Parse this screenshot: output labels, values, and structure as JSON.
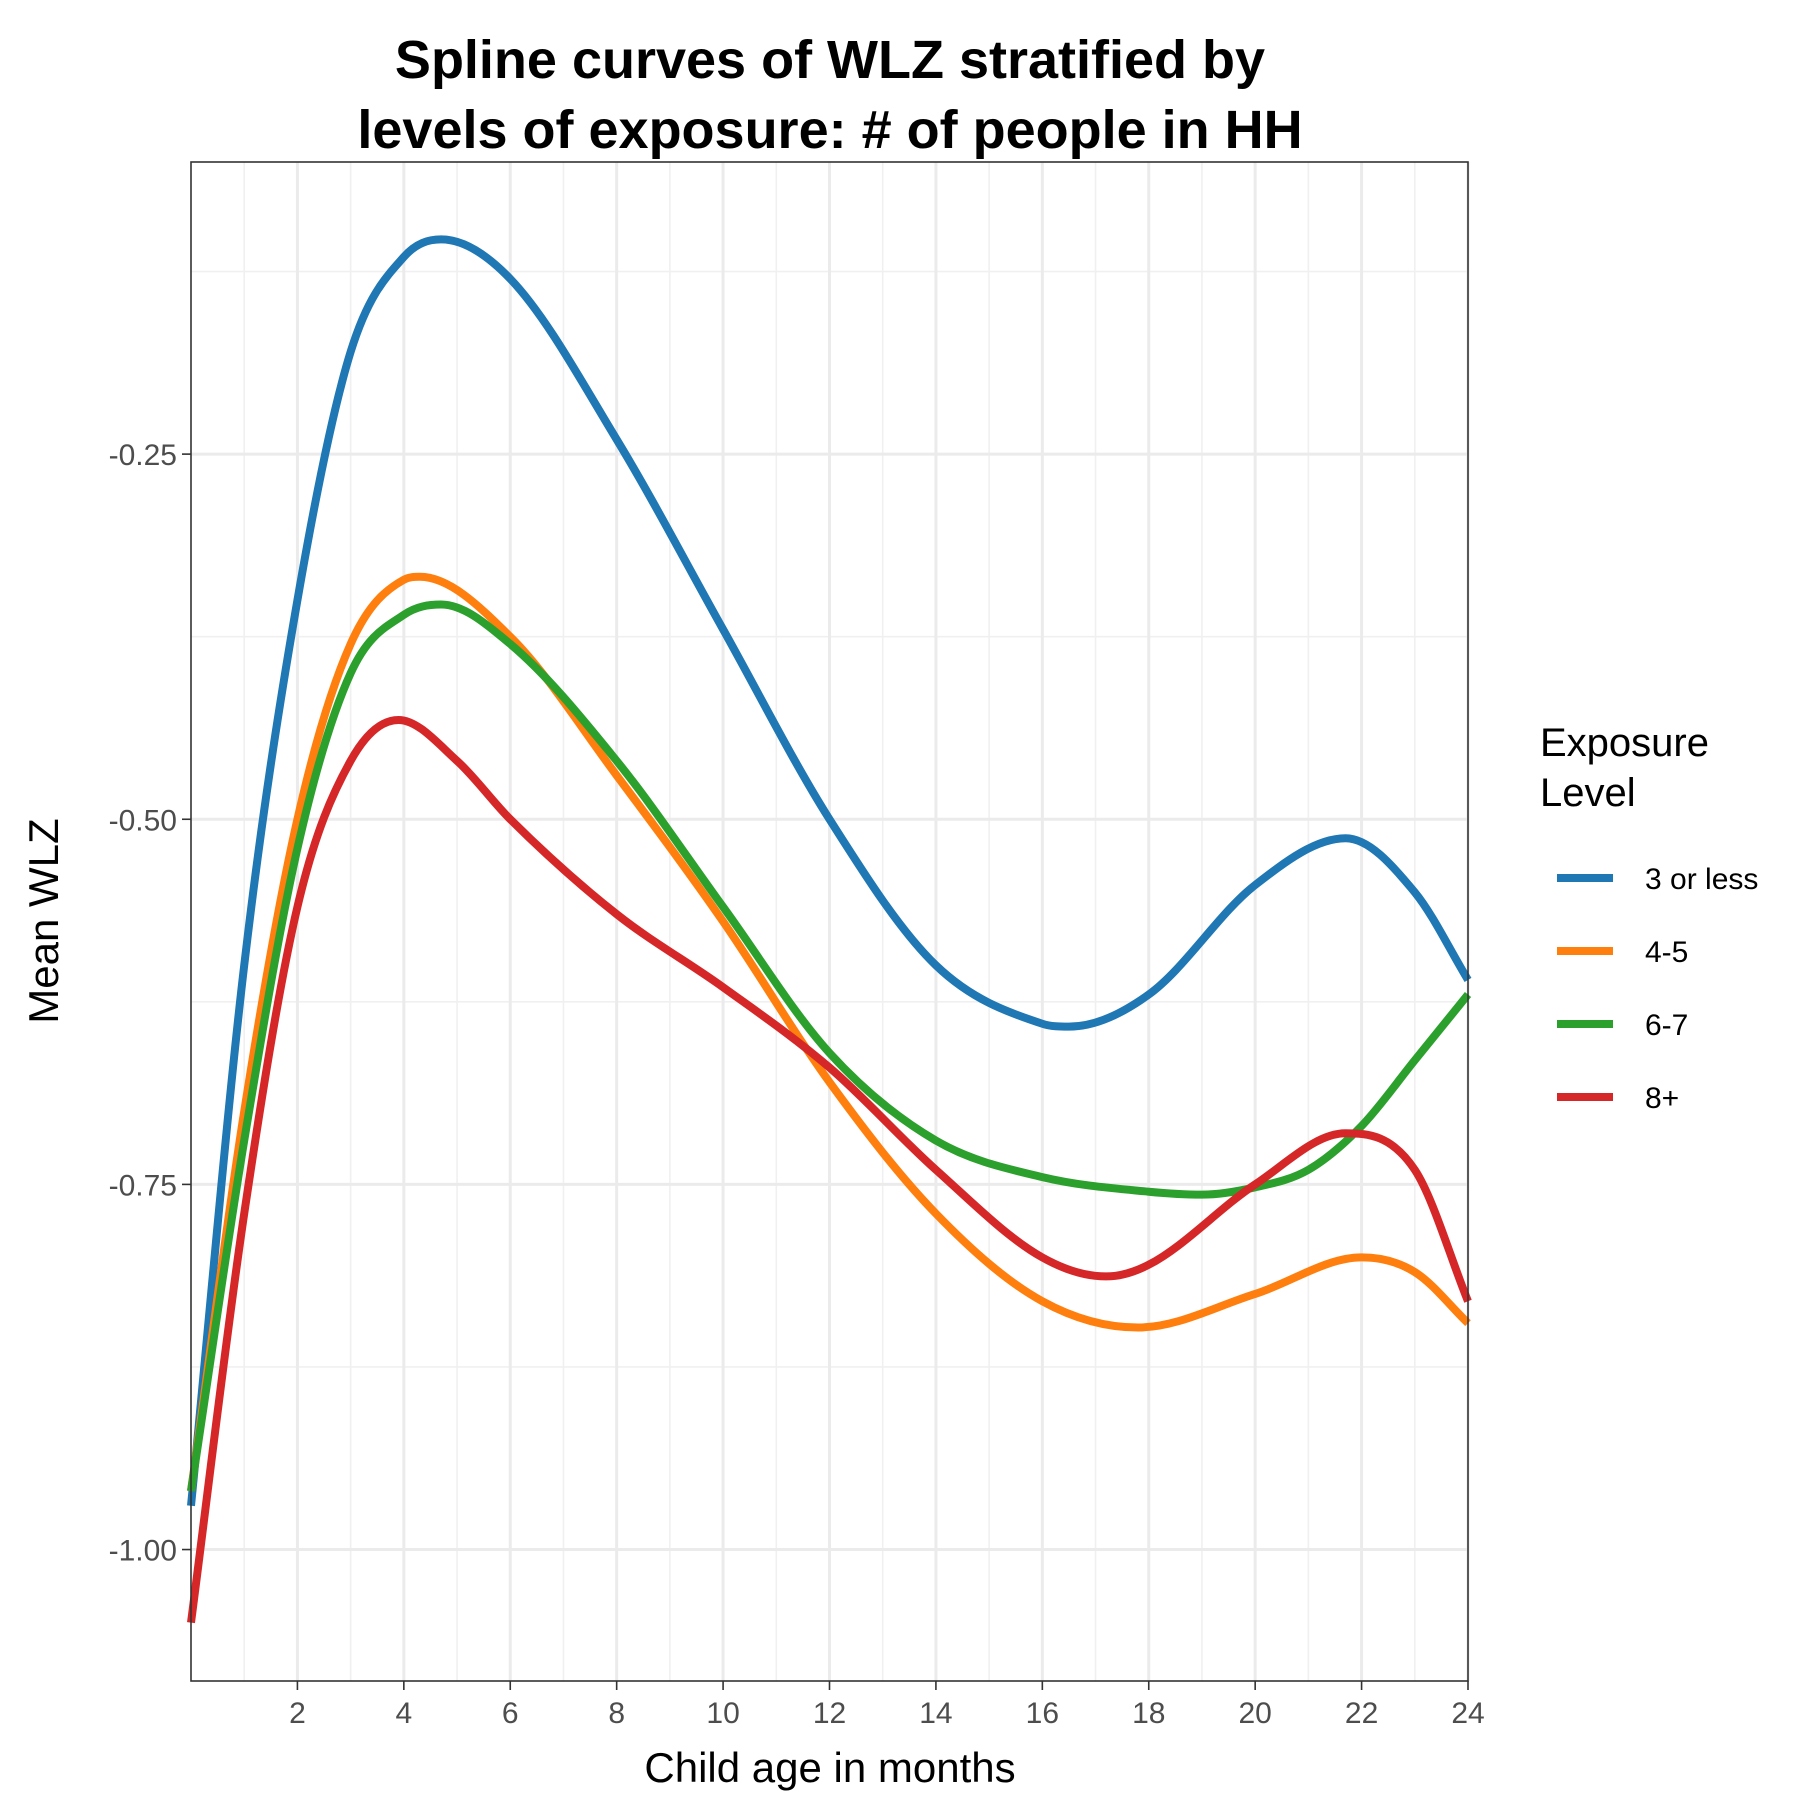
{
  "chart_data": {
    "type": "line",
    "title_lines": [
      "Spline curves of WLZ stratified by",
      "levels of exposure: # of people in HH"
    ],
    "xlabel": "Child age in months",
    "ylabel": "Mean WLZ",
    "xlim": [
      0,
      24
    ],
    "ylim": [
      -1.09,
      -0.05
    ],
    "x_ticks": [
      2,
      4,
      6,
      8,
      10,
      12,
      14,
      16,
      18,
      20,
      22,
      24
    ],
    "y_ticks": [
      -1.0,
      -0.75,
      -0.5,
      -0.25
    ],
    "y_tick_labels": [
      "-1.00",
      "-0.75",
      "-0.50",
      "-0.25"
    ],
    "x_minor_gridlines": [
      1,
      3,
      5,
      7,
      9,
      11,
      13,
      15,
      17,
      19,
      21,
      23
    ],
    "y_minor_gridlines": [
      -0.875,
      -0.625,
      -0.375,
      -0.125
    ],
    "grid": true,
    "legend": {
      "title_lines": [
        "Exposure",
        "Level"
      ],
      "position": "right"
    },
    "series": [
      {
        "name": "3 or less",
        "color": "#1f77b4",
        "x": [
          0,
          1,
          2,
          3,
          4,
          4.7,
          6,
          8,
          10,
          12,
          14,
          16,
          16.5,
          18,
          20,
          21.7,
          23,
          24
        ],
        "y": [
          -0.97,
          -0.6,
          -0.35,
          -0.18,
          -0.115,
          -0.103,
          -0.13,
          -0.24,
          -0.37,
          -0.5,
          -0.6,
          -0.64,
          -0.642,
          -0.62,
          -0.545,
          -0.513,
          -0.55,
          -0.61
        ]
      },
      {
        "name": "4-5",
        "color": "#ff7f0e",
        "x": [
          0,
          1,
          2,
          3,
          4,
          4.3,
          6,
          8,
          10,
          12,
          14,
          16,
          17.8,
          20,
          22,
          23,
          24
        ],
        "y": [
          -0.96,
          -0.7,
          -0.5,
          -0.38,
          -0.336,
          -0.334,
          -0.375,
          -0.47,
          -0.57,
          -0.68,
          -0.77,
          -0.83,
          -0.848,
          -0.825,
          -0.8,
          -0.81,
          -0.845
        ]
      },
      {
        "name": "6-7",
        "color": "#2ca02c",
        "x": [
          0,
          1,
          2,
          3,
          4,
          4.7,
          6,
          8,
          10,
          12,
          14,
          16,
          18,
          19,
          20,
          21,
          22,
          23,
          24
        ],
        "y": [
          -0.96,
          -0.72,
          -0.52,
          -0.4,
          -0.36,
          -0.353,
          -0.38,
          -0.46,
          -0.56,
          -0.66,
          -0.72,
          -0.745,
          -0.755,
          -0.757,
          -0.752,
          -0.74,
          -0.71,
          -0.665,
          -0.62
        ]
      },
      {
        "name": "8+",
        "color": "#d62728",
        "x": [
          0,
          1,
          2,
          3,
          3.9,
          5,
          6,
          8,
          10,
          12,
          14,
          16,
          17.2,
          18,
          20,
          21.7,
          23,
          24
        ],
        "y": [
          -1.05,
          -0.77,
          -0.56,
          -0.46,
          -0.432,
          -0.46,
          -0.5,
          -0.565,
          -0.615,
          -0.67,
          -0.74,
          -0.8,
          -0.813,
          -0.805,
          -0.75,
          -0.715,
          -0.74,
          -0.83
        ]
      }
    ]
  }
}
